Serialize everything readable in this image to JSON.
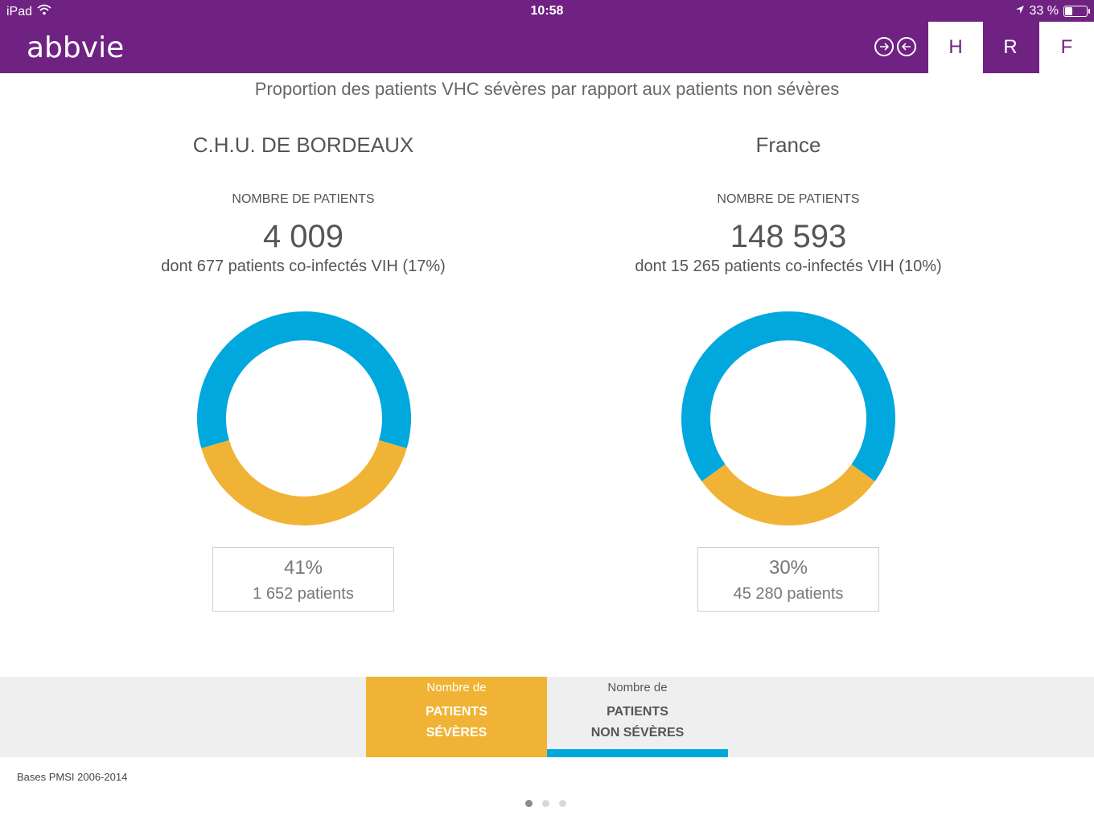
{
  "status_bar": {
    "device": "iPad",
    "time": "10:58",
    "battery": "33 %",
    "battery_level": 0.33
  },
  "header": {
    "logo": "abbvie",
    "tabs": [
      "H",
      "R",
      "F"
    ],
    "active_tab": "H"
  },
  "page": {
    "title": "Proportion des patients VHC sévères par rapport aux patients non sévères"
  },
  "panels": [
    {
      "name": "C.H.U. DE BORDEAUX",
      "count_label": "NOMBRE DE PATIENTS",
      "count": "4 009",
      "coinfected": "dont 677 patients co-infectés VIH (17%)",
      "severe_pct": "41%",
      "severe_patients": "1 652 patients"
    },
    {
      "name": "France",
      "count_label": "NOMBRE DE PATIENTS",
      "count": "148 593",
      "coinfected": "dont 15 265 patients co-infectés VIH (10%)",
      "severe_pct": "30%",
      "severe_patients": "45 280 patients"
    }
  ],
  "chart_data": [
    {
      "type": "pie",
      "categories": [
        "PATIENTS SÉVÈRES",
        "PATIENTS NON SÉVÈRES"
      ],
      "values": [
        41,
        59
      ],
      "colors": [
        "#f0b335",
        "#00a8de"
      ]
    },
    {
      "type": "pie",
      "categories": [
        "PATIENTS SÉVÈRES",
        "PATIENTS NON SÉVÈRES"
      ],
      "values": [
        30,
        70
      ],
      "colors": [
        "#f0b335",
        "#00a8de"
      ]
    }
  ],
  "legend": {
    "severe": {
      "line1": "Nombre de",
      "line2": "PATIENTS",
      "line3": "SÉVÈRES",
      "color": "#f0b335"
    },
    "nonsevere": {
      "line1": "Nombre de",
      "line2": "PATIENTS",
      "line3": "NON SÉVÈRES",
      "color": "#00a8de"
    }
  },
  "footer": {
    "source": "Bases PMSI 2006-2014",
    "pages": 3,
    "current_page": 1
  },
  "colors": {
    "brand": "#6f2282",
    "severe": "#f0b335",
    "nonsevere": "#00a8de"
  },
  "icons": {
    "wifi": "wifi-icon",
    "location": "location-arrow-icon",
    "battery": "battery-icon",
    "forward": "arrow-right-circle-icon",
    "back": "arrow-left-circle-icon"
  }
}
